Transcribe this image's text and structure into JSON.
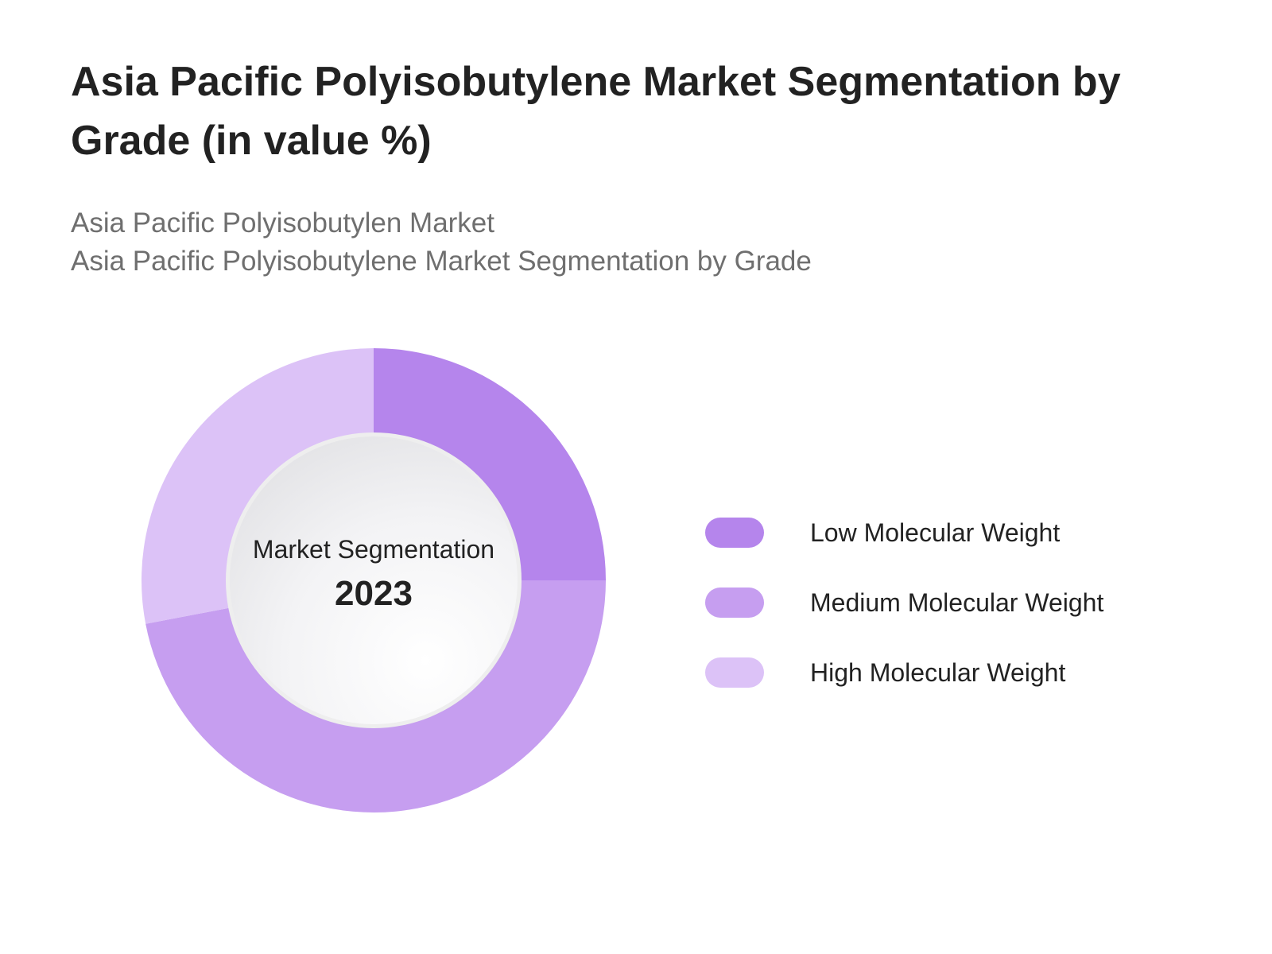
{
  "header": {
    "title": "Asia Pacific Polyisobutylene Market Segmentation by Grade  (in value %)",
    "subtitle_line1": "Asia Pacific Polyisobutylen Market",
    "subtitle_line2": "Asia Pacific Polyisobutylene Market Segmentation by Grade"
  },
  "center": {
    "label": "Market Segmentation",
    "year": "2023"
  },
  "chart_data": {
    "type": "pie",
    "donut": true,
    "title": "Asia Pacific Polyisobutylene Market Segmentation by Grade  (in value %)",
    "categories": [
      "Low Molecular Weight",
      "Medium Molecular Weight",
      "High Molecular Weight"
    ],
    "values": [
      25,
      47,
      28
    ],
    "colors": [
      "#b585ec",
      "#c69ef0",
      "#dcc2f7"
    ],
    "start_angle_deg": 0,
    "direction": "clockwise",
    "legend_position": "right"
  }
}
